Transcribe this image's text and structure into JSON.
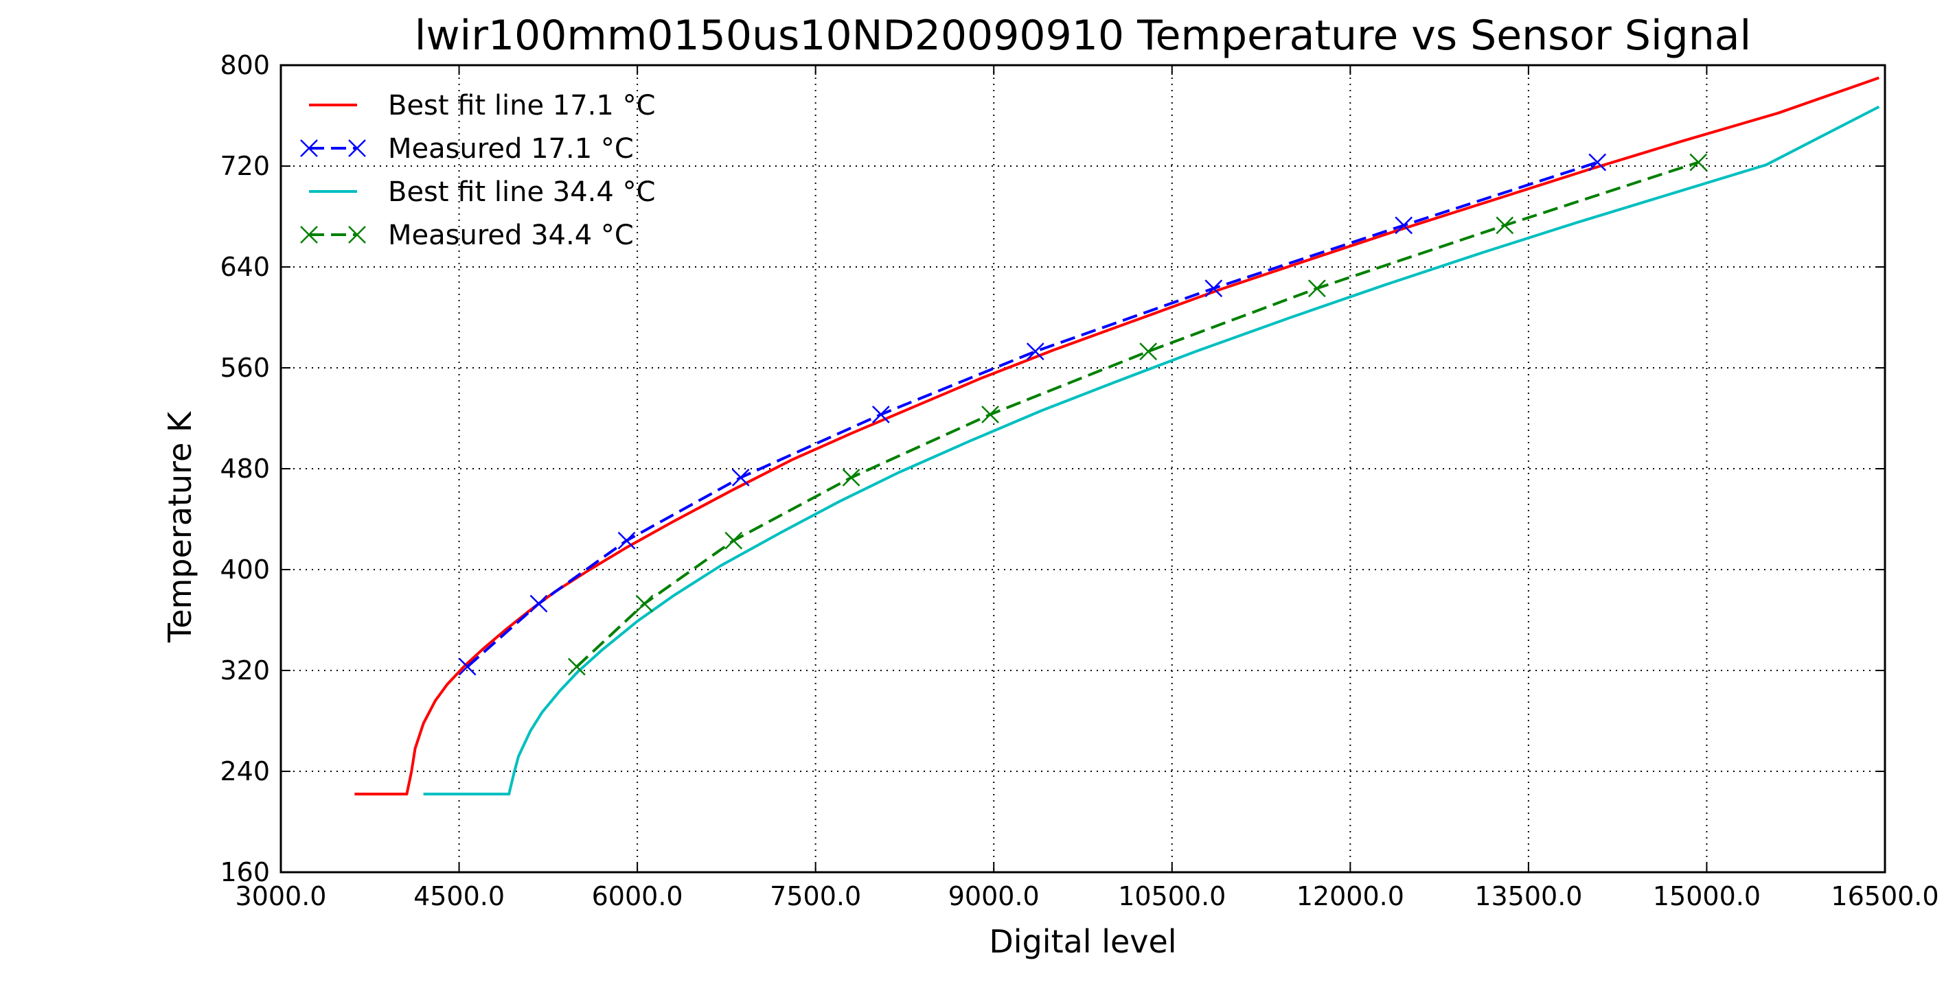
{
  "chart_data": {
    "type": "line",
    "title": "lwir100mm0150us10ND20090910 Temperature vs Sensor Signal",
    "xlabel": "Digital level",
    "ylabel": "Temperature K",
    "xlim": [
      3000,
      16500
    ],
    "ylim": [
      160,
      800
    ],
    "xticks": [
      3000,
      4500,
      6000,
      7500,
      9000,
      10500,
      12000,
      13500,
      15000,
      16500
    ],
    "xtick_labels": [
      "3000.0",
      "4500.0",
      "6000.0",
      "7500.0",
      "9000.0",
      "10500.0",
      "12000.0",
      "13500.0",
      "15000.0",
      "16500.0"
    ],
    "yticks": [
      160,
      240,
      320,
      400,
      480,
      560,
      640,
      720,
      800
    ],
    "ytick_labels": [
      "160",
      "240",
      "320",
      "400",
      "480",
      "560",
      "640",
      "720",
      "800"
    ],
    "grid": true,
    "legend_position": "top-left",
    "series": [
      {
        "name": "Best fit line 17.1$^\\circ$C",
        "label": "Best fit line 17.1 °C",
        "style": "solid",
        "marker": "none",
        "color": "#ff0000",
        "x": [
          3620,
          4060,
          4100,
          4130,
          4200,
          4300,
          4400,
          4550,
          4700,
          4900,
          5100,
          5300,
          5600,
          5900,
          6300,
          6800,
          7300,
          7800,
          8300,
          8900,
          9500,
          10200,
          10900,
          11600,
          12400,
          13200,
          14000,
          14800,
          15600,
          16450
        ],
        "y": [
          222,
          222,
          240,
          258,
          278,
          296,
          309,
          324,
          337,
          353,
          368,
          382,
          400,
          417,
          438,
          463,
          487,
          508,
          528,
          552,
          574,
          598,
          622,
          644,
          669,
          693,
          717,
          740,
          762,
          790
        ]
      },
      {
        "name": "Measured 17.1$^\\circ$C",
        "label": "Measured 17.1 °C",
        "style": "dashed",
        "marker": "x",
        "color": "#0000ff",
        "x": [
          4570,
          5170,
          5910,
          6870,
          8050,
          9350,
          10850,
          12450,
          14080
        ],
        "y": [
          323,
          373,
          423,
          473,
          523,
          573,
          623,
          673,
          723
        ]
      },
      {
        "name": "Best fit line 34.4$^\\circ$C",
        "label": "Best fit line 34.4 °C",
        "style": "solid",
        "marker": "none",
        "color": "#00bfbf",
        "x": [
          4200,
          4920,
          4960,
          5000,
          5100,
          5200,
          5350,
          5500,
          5700,
          6000,
          6300,
          6700,
          7200,
          7700,
          8200,
          8800,
          9400,
          10000,
          10700,
          11500,
          12300,
          13100,
          13900,
          14700,
          15500,
          16450
        ],
        "y": [
          222,
          222,
          238,
          252,
          272,
          287,
          304,
          319,
          336,
          359,
          379,
          403,
          429,
          454,
          477,
          502,
          526,
          548,
          573,
          600,
          626,
          651,
          675,
          698,
          721,
          767
        ]
      },
      {
        "name": "Measured 34.4$^\\circ$C",
        "label": "Measured 34.4 °C",
        "style": "dashed",
        "marker": "x",
        "color": "#008000",
        "x": [
          5490,
          6060,
          6810,
          7800,
          8970,
          10300,
          11720,
          13300,
          14930
        ],
        "y": [
          323,
          373,
          423,
          473,
          523,
          573,
          623,
          673,
          723
        ]
      }
    ]
  }
}
